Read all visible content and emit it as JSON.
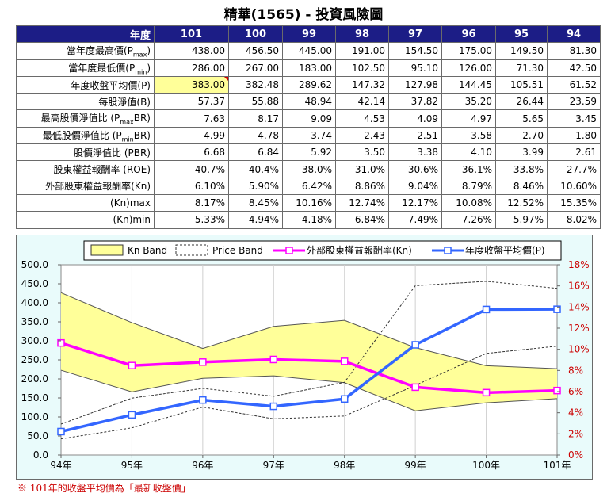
{
  "title": "精華(1565) -  投資風險圖",
  "table": {
    "header_label": "年度",
    "years": [
      "101",
      "100",
      "99",
      "98",
      "97",
      "96",
      "95",
      "94"
    ],
    "rows": [
      {
        "label": "當年度最高價(P",
        "sub": "max",
        "suffix": ")",
        "values": [
          "438.00",
          "456.50",
          "445.00",
          "191.00",
          "154.50",
          "175.00",
          "149.50",
          "81.30"
        ]
      },
      {
        "label": "當年度最低價(P",
        "sub": "min",
        "suffix": ")",
        "values": [
          "286.00",
          "267.00",
          "183.00",
          "102.50",
          "95.10",
          "126.00",
          "71.30",
          "42.50"
        ]
      },
      {
        "label": "年度收盤平均價(P)",
        "sub": "",
        "suffix": "",
        "values": [
          "383.00",
          "382.48",
          "289.62",
          "147.32",
          "127.98",
          "144.45",
          "105.51",
          "61.52"
        ]
      },
      {
        "label": "每股淨值(B)",
        "sub": "",
        "suffix": "",
        "values": [
          "57.37",
          "55.88",
          "48.94",
          "42.14",
          "37.82",
          "35.20",
          "26.44",
          "23.59"
        ]
      },
      {
        "label": "最高股價淨值比 (P",
        "sub": "max",
        "suffix": "BR)",
        "values": [
          "7.63",
          "8.17",
          "9.09",
          "4.53",
          "4.09",
          "4.97",
          "5.65",
          "3.45"
        ]
      },
      {
        "label": "最低股價淨值比 (P",
        "sub": "min",
        "suffix": "BR)",
        "values": [
          "4.99",
          "4.78",
          "3.74",
          "2.43",
          "2.51",
          "3.58",
          "2.70",
          "1.80"
        ]
      },
      {
        "label": "股價淨值比 (PBR)",
        "sub": "",
        "suffix": "",
        "values": [
          "6.68",
          "6.84",
          "5.92",
          "3.50",
          "3.38",
          "4.10",
          "3.99",
          "2.61"
        ]
      },
      {
        "label": "股東權益報酬率 (ROE)",
        "sub": "",
        "suffix": "",
        "values": [
          "40.7%",
          "40.4%",
          "38.0%",
          "31.0%",
          "30.6%",
          "36.1%",
          "33.8%",
          "27.7%"
        ]
      },
      {
        "label": "外部股東權益報酬率(Kn)",
        "sub": "",
        "suffix": "",
        "values": [
          "6.10%",
          "5.90%",
          "6.42%",
          "8.86%",
          "9.04%",
          "8.79%",
          "8.46%",
          "10.60%"
        ]
      },
      {
        "label": "(Kn)max",
        "sub": "",
        "suffix": "",
        "values": [
          "8.17%",
          "8.45%",
          "10.16%",
          "12.74%",
          "12.17%",
          "10.08%",
          "12.52%",
          "15.35%"
        ]
      },
      {
        "label": "(Kn)min",
        "sub": "",
        "suffix": "",
        "values": [
          "5.33%",
          "4.94%",
          "4.18%",
          "6.84%",
          "7.49%",
          "7.26%",
          "5.97%",
          "8.02%"
        ]
      }
    ]
  },
  "chart_data": {
    "type": "line",
    "categories": [
      "94年",
      "95年",
      "96年",
      "97年",
      "98年",
      "99年",
      "100年",
      "101年"
    ],
    "left_axis": {
      "ylim": [
        0,
        500
      ],
      "ticks": [
        "0.0",
        "50.0",
        "100.0",
        "150.0",
        "200.0",
        "250.0",
        "300.0",
        "350.0",
        "400.0",
        "450.0",
        "500.0"
      ]
    },
    "right_axis": {
      "ylim": [
        0,
        18
      ],
      "ticks": [
        "0%",
        "2%",
        "4%",
        "6%",
        "8%",
        "10%",
        "12%",
        "14%",
        "16%",
        "18%"
      ]
    },
    "legend": [
      "Kn Band",
      "Price Band",
      "外部股東權益報酬率(Kn)",
      "年度收盤平均價(P)"
    ],
    "kn_band": {
      "upper": [
        15.35,
        12.52,
        10.08,
        12.17,
        12.74,
        10.16,
        8.45,
        8.17
      ],
      "lower": [
        8.02,
        5.97,
        7.26,
        7.49,
        6.84,
        4.18,
        4.94,
        5.33
      ]
    },
    "price_band": {
      "upper": [
        81.3,
        149.5,
        175.0,
        154.5,
        191.0,
        445.0,
        456.5,
        438.0
      ],
      "lower": [
        42.5,
        71.3,
        126.0,
        95.1,
        102.5,
        183.0,
        267.0,
        286.0
      ]
    },
    "series": [
      {
        "name": "外部股東權益報酬率(Kn)",
        "axis": "right",
        "color": "#ff00ff",
        "values": [
          10.6,
          8.46,
          8.79,
          9.04,
          8.86,
          6.42,
          5.9,
          6.1
        ]
      },
      {
        "name": "年度收盤平均價(P)",
        "axis": "left",
        "color": "#3366ff",
        "values": [
          61.52,
          105.51,
          144.45,
          127.98,
          147.32,
          289.62,
          382.48,
          383.0
        ]
      }
    ]
  },
  "note": "※ 101年的收盤平均價為「最新收盤價」"
}
